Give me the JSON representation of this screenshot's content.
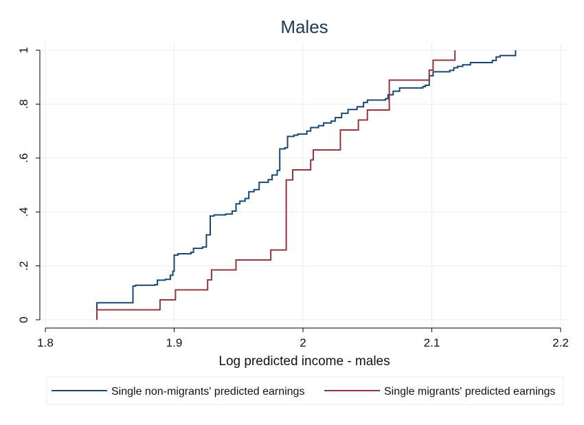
{
  "chart_data": {
    "type": "line",
    "title": "Males",
    "xlabel": "Log predicted income - males",
    "ylabel": "",
    "xlim": [
      1.8,
      2.2
    ],
    "ylim": [
      0,
      1
    ],
    "x_ticks": [
      1.8,
      1.9,
      2.0,
      2.1,
      2.2
    ],
    "x_tick_labels": [
      "1.8",
      "1.9",
      "2",
      "2.1",
      "2.2"
    ],
    "y_ticks": [
      0,
      0.2,
      0.4,
      0.6,
      0.8,
      1.0
    ],
    "y_tick_labels": [
      "0",
      ".2",
      ".4",
      ".6",
      ".8",
      "1"
    ],
    "grid": true,
    "legend_position": "bottom",
    "series": [
      {
        "name": "Single non-migrants' predicted earnings",
        "color": "#1a476f",
        "step": true,
        "points": [
          [
            1.84,
            0.0
          ],
          [
            1.84,
            0.063
          ],
          [
            1.868,
            0.063
          ],
          [
            1.868,
            0.125
          ],
          [
            1.87,
            0.128
          ],
          [
            1.885,
            0.13
          ],
          [
            1.887,
            0.147
          ],
          [
            1.893,
            0.15
          ],
          [
            1.897,
            0.165
          ],
          [
            1.899,
            0.18
          ],
          [
            1.9,
            0.24
          ],
          [
            1.903,
            0.245
          ],
          [
            1.913,
            0.25
          ],
          [
            1.915,
            0.265
          ],
          [
            1.922,
            0.27
          ],
          [
            1.925,
            0.315
          ],
          [
            1.928,
            0.385
          ],
          [
            1.931,
            0.389
          ],
          [
            1.94,
            0.392
          ],
          [
            1.945,
            0.403
          ],
          [
            1.948,
            0.43
          ],
          [
            1.951,
            0.44
          ],
          [
            1.955,
            0.45
          ],
          [
            1.958,
            0.475
          ],
          [
            1.962,
            0.483
          ],
          [
            1.966,
            0.51
          ],
          [
            1.973,
            0.52
          ],
          [
            1.976,
            0.537
          ],
          [
            1.98,
            0.554
          ],
          [
            1.982,
            0.634
          ],
          [
            1.986,
            0.638
          ],
          [
            1.988,
            0.68
          ],
          [
            1.993,
            0.685
          ],
          [
            1.996,
            0.689
          ],
          [
            2.003,
            0.7
          ],
          [
            2.006,
            0.713
          ],
          [
            2.012,
            0.72
          ],
          [
            2.016,
            0.73
          ],
          [
            2.022,
            0.737
          ],
          [
            2.025,
            0.75
          ],
          [
            2.03,
            0.766
          ],
          [
            2.035,
            0.78
          ],
          [
            2.042,
            0.79
          ],
          [
            2.047,
            0.806
          ],
          [
            2.05,
            0.815
          ],
          [
            2.064,
            0.82
          ],
          [
            2.066,
            0.835
          ],
          [
            2.07,
            0.848
          ],
          [
            2.075,
            0.86
          ],
          [
            2.093,
            0.865
          ],
          [
            2.095,
            0.87
          ],
          [
            2.098,
            0.905
          ],
          [
            2.101,
            0.92
          ],
          [
            2.114,
            0.925
          ],
          [
            2.117,
            0.935
          ],
          [
            2.12,
            0.94
          ],
          [
            2.124,
            0.946
          ],
          [
            2.13,
            0.954
          ],
          [
            2.147,
            0.962
          ],
          [
            2.15,
            0.975
          ],
          [
            2.153,
            0.98
          ],
          [
            2.165,
            0.985
          ],
          [
            2.165,
            1.0
          ]
        ]
      },
      {
        "name": "Single migrants' predicted earnings",
        "color": "#90353b",
        "step": true,
        "points": [
          [
            1.84,
            0.0
          ],
          [
            1.84,
            0.037
          ],
          [
            1.889,
            0.037
          ],
          [
            1.889,
            0.074
          ],
          [
            1.901,
            0.074
          ],
          [
            1.901,
            0.111
          ],
          [
            1.926,
            0.111
          ],
          [
            1.926,
            0.148
          ],
          [
            1.929,
            0.148
          ],
          [
            1.929,
            0.185
          ],
          [
            1.948,
            0.185
          ],
          [
            1.948,
            0.222
          ],
          [
            1.975,
            0.222
          ],
          [
            1.975,
            0.259
          ],
          [
            1.987,
            0.259
          ],
          [
            1.987,
            0.519
          ],
          [
            1.992,
            0.519
          ],
          [
            1.992,
            0.556
          ],
          [
            2.006,
            0.556
          ],
          [
            2.006,
            0.593
          ],
          [
            2.008,
            0.593
          ],
          [
            2.008,
            0.63
          ],
          [
            2.029,
            0.63
          ],
          [
            2.029,
            0.704
          ],
          [
            2.043,
            0.704
          ],
          [
            2.043,
            0.741
          ],
          [
            2.05,
            0.741
          ],
          [
            2.05,
            0.778
          ],
          [
            2.067,
            0.778
          ],
          [
            2.067,
            0.889
          ],
          [
            2.098,
            0.889
          ],
          [
            2.098,
            0.926
          ],
          [
            2.101,
            0.926
          ],
          [
            2.101,
            0.963
          ],
          [
            2.118,
            0.963
          ],
          [
            2.118,
            1.0
          ]
        ]
      }
    ]
  }
}
